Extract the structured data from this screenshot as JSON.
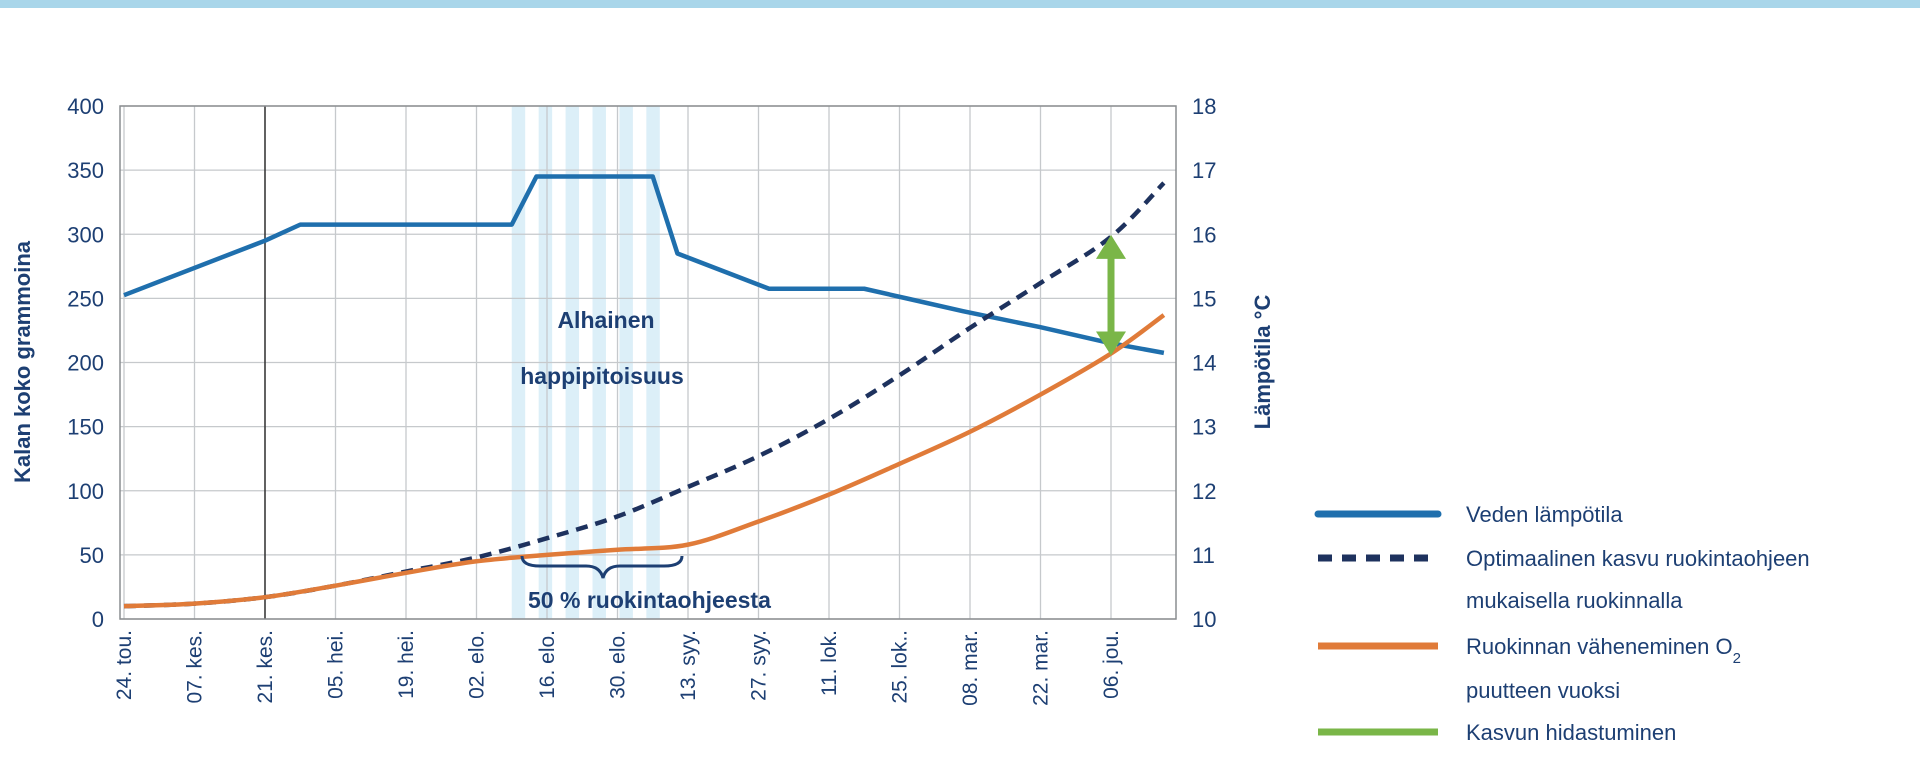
{
  "chart_data": {
    "type": "line",
    "y_left": {
      "label": "Kalan koko grammoina",
      "min": 0,
      "max": 400,
      "ticks": [
        "0",
        "50",
        "100",
        "150",
        "200",
        "250",
        "300",
        "350",
        "400"
      ]
    },
    "y_right": {
      "label": "Lämpötila °C",
      "min": 10,
      "max": 18,
      "ticks": [
        "10",
        "11",
        "12",
        "13",
        "14",
        "15",
        "16",
        "17",
        "18"
      ]
    },
    "x_ticks": [
      "24. tou.",
      "07. kes.",
      "21. kes.",
      "05. hei.",
      "19. hei.",
      "02. elo.",
      "16. elo.",
      "30. elo.",
      "13. syy.",
      "27. syy.",
      "11. lok.",
      "25. lok..",
      "08. mar.",
      "22. mar.",
      "06. jou."
    ],
    "grid": true,
    "hypoxia_band": {
      "from_tick": 5.5,
      "to_tick": 7.6,
      "label_line1": "Alhainen",
      "label_line2": "happipitoisuus"
    },
    "bracket_label": "50 % ruokintaohjeesta",
    "series": [
      {
        "name": "Veden lämpötila",
        "axis": "right",
        "color": "#1f6fad",
        "style": "solid",
        "x": [
          0,
          2,
          2.5,
          5.5,
          5.85,
          7.5,
          7.85,
          9.15,
          10.0,
          10.5,
          11.1,
          11.9,
          13.0,
          14.0,
          14.75
        ],
        "y": [
          15.05,
          15.9,
          16.15,
          16.15,
          16.9,
          16.9,
          15.7,
          15.15,
          15.15,
          15.15,
          15.0,
          14.8,
          14.55,
          14.3,
          14.15
        ]
      },
      {
        "name": "Optimaalinen kasvu ruokintaohjeen mukaisella ruokinnalla",
        "axis": "left",
        "color": "#1e325e",
        "style": "dashed",
        "x": [
          0,
          1,
          2,
          3,
          4,
          5,
          6,
          7,
          8,
          9,
          10,
          11,
          12,
          13,
          14,
          14.75
        ],
        "y": [
          10,
          12,
          17,
          26,
          37,
          48,
          63,
          80,
          103,
          127,
          156,
          190,
          227,
          262,
          298,
          340
        ]
      },
      {
        "name": "Ruokinnan väheneminen O2 puutteen vuoksi",
        "axis": "left",
        "color": "#e07b39",
        "style": "solid",
        "x": [
          0,
          1,
          2,
          3,
          4,
          5,
          6,
          7,
          8,
          9,
          10,
          11,
          12,
          13,
          14,
          14.75
        ],
        "y": [
          10,
          12,
          17,
          26,
          36,
          45,
          50,
          54,
          58,
          76,
          97,
          121,
          146,
          175,
          207,
          237
        ]
      },
      {
        "name": "Kasvun hidastuminen",
        "axis": "left",
        "color": "#7ab648",
        "style": "arrow",
        "x": [
          14,
          14
        ],
        "y": [
          298,
          207
        ]
      }
    ],
    "legend": [
      {
        "label": "Veden lämpötila",
        "color": "#1f6fad",
        "style": "solid"
      },
      {
        "label": "Optimaalinen kasvu ruokintaohjeen",
        "label2": "mukaisella ruokinnalla",
        "color": "#1e325e",
        "style": "dashed"
      },
      {
        "label": "Ruokinnan väheneminen O",
        "sub": "2",
        "label2": "puutteen vuoksi",
        "color": "#e07b39",
        "style": "solid"
      },
      {
        "label": "Kasvun hidastuminen",
        "color": "#7ab648",
        "style": "solid"
      }
    ]
  }
}
